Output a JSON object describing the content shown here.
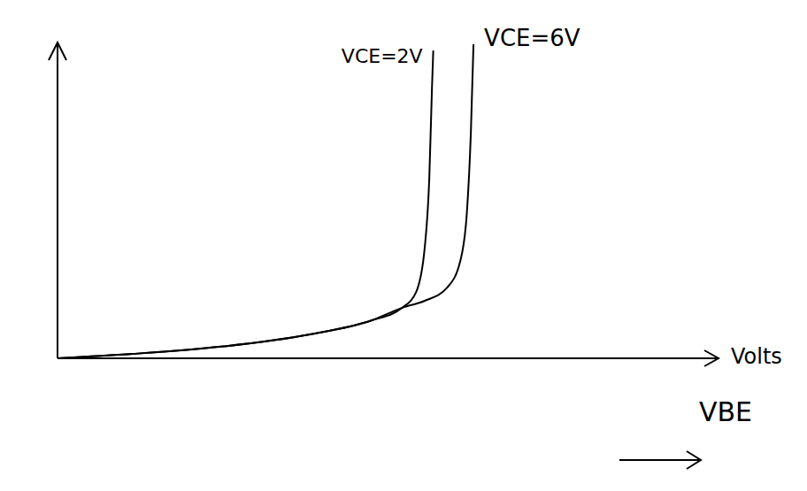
{
  "chart_data": {
    "type": "line",
    "x_label": "VBE",
    "x_unit": "Volts",
    "xlim": [
      0,
      10
    ],
    "ylim": [
      0,
      10
    ],
    "xticks": [],
    "yticks": [],
    "tick_labels": false,
    "grid": false,
    "series": [
      {
        "name": "VCE=2V",
        "color": "#000000",
        "x": [
          0,
          1.14,
          2.48,
          3.83,
          4.77,
          5.23,
          5.44,
          5.57,
          5.64,
          5.68,
          5.7
        ],
        "values": [
          0,
          0.14,
          0.37,
          0.76,
          1.21,
          1.61,
          2.11,
          3.52,
          5.77,
          8.59,
          9.8
        ]
      },
      {
        "name": "VCE=6V",
        "color": "#000000",
        "x": [
          0,
          1.14,
          2.48,
          3.83,
          4.77,
          5.23,
          5.57,
          5.91,
          6.11,
          6.21,
          6.27,
          6.31
        ],
        "values": [
          0,
          0.14,
          0.37,
          0.76,
          1.21,
          1.61,
          1.83,
          2.25,
          3.1,
          4.65,
          7.18,
          10
        ]
      }
    ]
  }
}
